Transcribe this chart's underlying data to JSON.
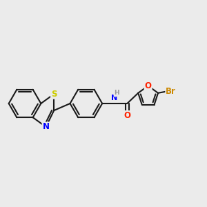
{
  "bg_color": "#ebebeb",
  "bond_color": "#1a1a1a",
  "bond_width": 1.5,
  "atom_colors": {
    "S": "#cccc00",
    "N": "#0000ff",
    "O": "#ff2200",
    "Br": "#cc8800",
    "H": "#999999",
    "C": "#1a1a1a"
  },
  "fs": 8.5
}
